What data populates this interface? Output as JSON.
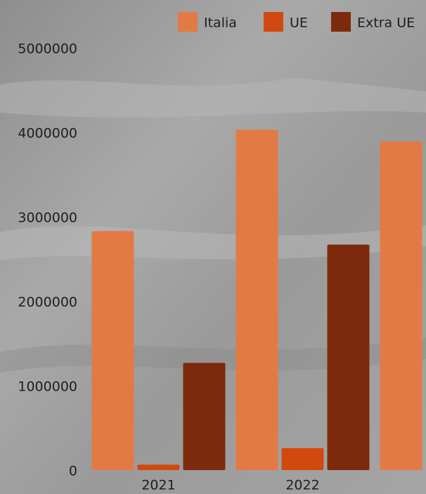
{
  "chart_data": {
    "type": "bar",
    "categories": [
      "2021",
      "2022",
      null
    ],
    "series": [
      {
        "name": "Italia",
        "color": "#e37a44",
        "values": [
          2830000,
          4030000,
          3890000
        ]
      },
      {
        "name": "UE",
        "color": "#d2490f",
        "values": [
          65000,
          260000,
          null
        ]
      },
      {
        "name": "Extra UE",
        "color": "#7c2a0b",
        "values": [
          1270000,
          2670000,
          null
        ]
      }
    ],
    "ylim": [
      0,
      5000000
    ],
    "yticks": [
      0,
      1000000,
      2000000,
      3000000,
      4000000,
      5000000
    ],
    "legend": "top-right"
  }
}
